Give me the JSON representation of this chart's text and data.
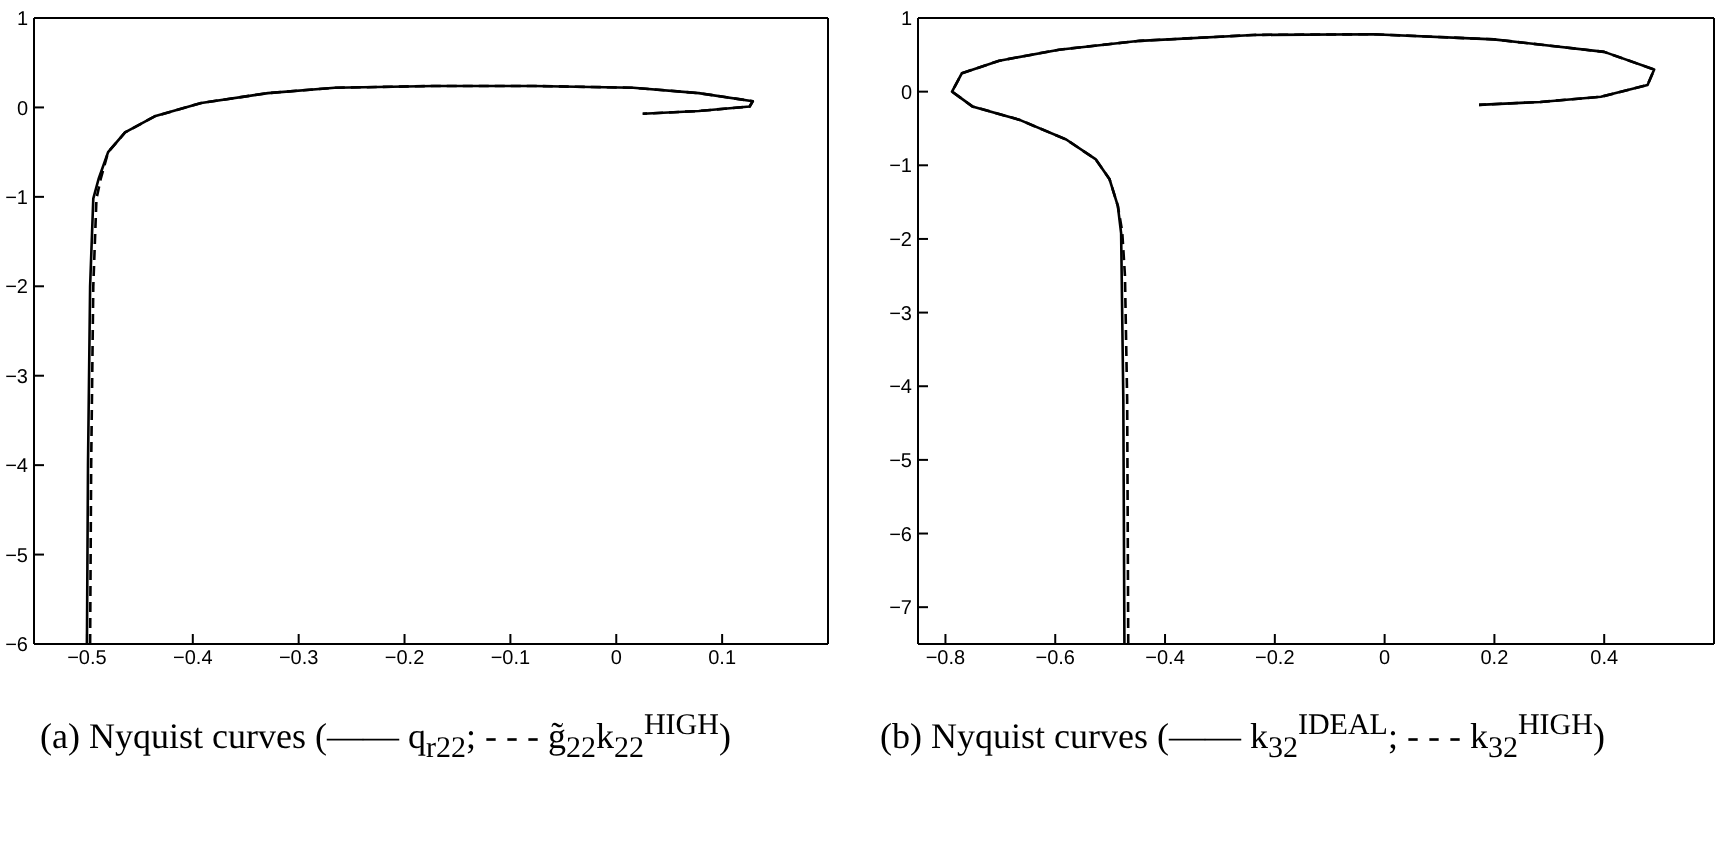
{
  "chart_data": [
    {
      "type": "line",
      "title": "(a) Nyquist curves (—— q$_{r22}$; - - - g̃$_{22}$k$_{22}$$^{HIGH}$)",
      "xlim": [
        -0.55,
        0.2
      ],
      "ylim": [
        -6,
        1
      ],
      "xticks": [
        -0.5,
        -0.4,
        -0.3,
        -0.2,
        -0.1,
        0,
        0.1
      ],
      "yticks": [
        -6,
        -5,
        -4,
        -3,
        -2,
        -1,
        0,
        1
      ],
      "grid": false,
      "marker": "none",
      "series": [
        {
          "color": "#000000",
          "line_style": "solid",
          "x": [
            -0.5,
            -0.499,
            -0.497,
            -0.494,
            -0.489,
            -0.48,
            -0.464,
            -0.436,
            -0.392,
            -0.329,
            -0.266,
            -0.172,
            -0.078,
            0.016,
            0.078,
            0.129,
            0.126,
            0.078,
            0.025
          ],
          "values": [
            -6,
            -4,
            -2,
            -1.02,
            -0.8,
            -0.5,
            -0.28,
            -0.1,
            0.05,
            0.16,
            0.22,
            0.24,
            0.24,
            0.22,
            0.16,
            0.07,
            0.01,
            -0.04,
            -0.07
          ]
        },
        {
          "color": "#000000",
          "line_style": "dashed",
          "x": [
            -0.497,
            -0.496,
            -0.494,
            -0.491,
            -0.487,
            -0.48,
            -0.464,
            -0.436,
            -0.392,
            -0.329,
            -0.266,
            -0.172,
            -0.078,
            0.016,
            0.078,
            0.129,
            0.126,
            0.078,
            0.025
          ],
          "values": [
            -6,
            -4,
            -2,
            -1.02,
            -0.8,
            -0.5,
            -0.28,
            -0.1,
            0.05,
            0.16,
            0.22,
            0.24,
            0.24,
            0.22,
            0.16,
            0.07,
            0.01,
            -0.04,
            -0.07
          ]
        }
      ]
    },
    {
      "type": "line",
      "title": "(b) Nyquist curves (—— k$_{32}$$^{IDEAL}$; - - - k$_{32}$$^{HIGH}$)",
      "xlim": [
        -0.85,
        0.6
      ],
      "ylim": [
        -7.5,
        1
      ],
      "xticks": [
        -0.8,
        -0.6,
        -0.4,
        -0.2,
        0,
        0.2,
        0.4
      ],
      "yticks": [
        -7,
        -6,
        -5,
        -4,
        -3,
        -2,
        -1,
        0,
        1
      ],
      "grid": false,
      "marker": "none",
      "series": [
        {
          "color": "#000000",
          "line_style": "solid",
          "x": [
            -0.474,
            -0.476,
            -0.48,
            -0.486,
            -0.501,
            -0.526,
            -0.58,
            -0.666,
            -0.751,
            -0.788,
            -0.77,
            -0.702,
            -0.593,
            -0.446,
            -0.239,
            -0.021,
            0.199,
            0.4,
            0.491,
            0.479,
            0.394,
            0.284,
            0.172
          ],
          "values": [
            -7.5,
            -4.17,
            -1.92,
            -1.55,
            -1.19,
            -0.92,
            -0.65,
            -0.38,
            -0.2,
            0,
            0.25,
            0.42,
            0.57,
            0.69,
            0.77,
            0.78,
            0.71,
            0.54,
            0.3,
            0.09,
            -0.07,
            -0.14,
            -0.18
          ]
        },
        {
          "color": "#000000",
          "line_style": "dashed",
          "x": [
            -0.467,
            -0.469,
            -0.473,
            -0.478,
            -0.486,
            -0.501,
            -0.526,
            -0.58,
            -0.666,
            -0.751,
            -0.788,
            -0.77,
            -0.702,
            -0.593,
            -0.446,
            -0.239,
            -0.021,
            0.199,
            0.4,
            0.491,
            0.479,
            0.394,
            0.284,
            0.172
          ],
          "values": [
            -7.5,
            -4.17,
            -2.5,
            -1.9,
            -1.55,
            -1.19,
            -0.92,
            -0.65,
            -0.38,
            -0.2,
            0,
            0.25,
            0.42,
            0.57,
            0.69,
            0.77,
            0.78,
            0.71,
            0.54,
            0.3,
            0.09,
            -0.07,
            -0.14,
            -0.18
          ]
        }
      ]
    }
  ]
}
